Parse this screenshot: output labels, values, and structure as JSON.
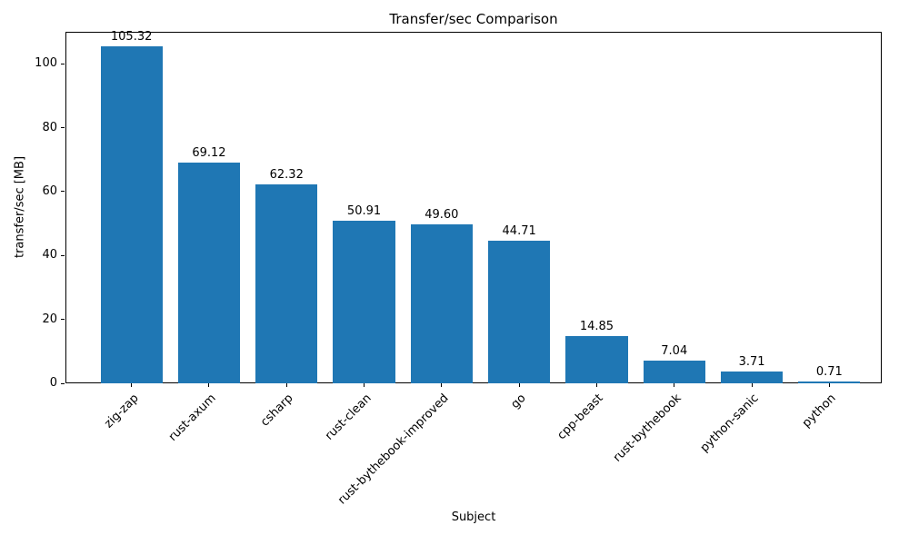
{
  "figure": {
    "title": "Transfer/sec Comparison",
    "xlabel": "Subject",
    "ylabel": "transfer/sec [MB]"
  },
  "chart_data": {
    "type": "bar",
    "title": "Transfer/sec Comparison",
    "xlabel": "Subject",
    "ylabel": "transfer/sec [MB]",
    "categories": [
      "zig-zap",
      "rust-axum",
      "csharp",
      "rust-clean",
      "rust-bythebook-improved",
      "go",
      "cpp-beast",
      "rust-bythebook",
      "python-sanic",
      "python"
    ],
    "values": [
      105.32,
      69.12,
      62.32,
      50.91,
      49.6,
      44.71,
      14.85,
      7.04,
      3.71,
      0.71
    ],
    "value_labels": [
      "105.32",
      "69.12",
      "62.32",
      "50.91",
      "49.60",
      "44.71",
      "14.85",
      "7.04",
      "3.71",
      "0.71"
    ],
    "bar_color": "#1f77b4",
    "ylim": [
      0,
      110
    ],
    "yticks": [
      0,
      20,
      40,
      60,
      80,
      100
    ],
    "grid": false,
    "legend_position": "none"
  }
}
